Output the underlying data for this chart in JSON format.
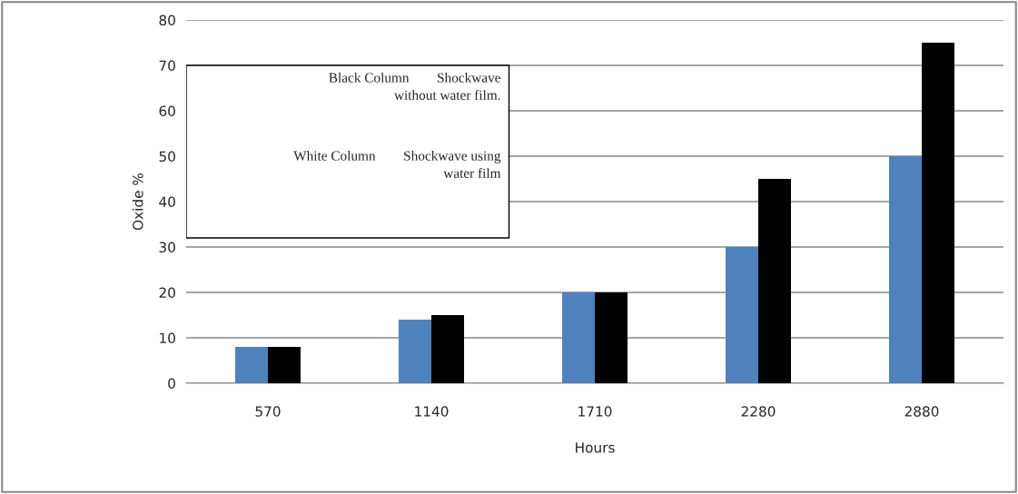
{
  "chart_data": {
    "type": "bar",
    "xlabel": "Hours",
    "ylabel": "Oxide %",
    "categories": [
      "570",
      "1140",
      "1710",
      "2280",
      "2880"
    ],
    "series": [
      {
        "color": "#4f81bd",
        "values": [
          8,
          14,
          20,
          30,
          50
        ]
      },
      {
        "color": "#000000",
        "values": [
          8,
          15,
          20,
          45,
          75
        ]
      }
    ],
    "ylim": [
      0,
      80
    ],
    "yticks": [
      0,
      10,
      20,
      30,
      40,
      50,
      60,
      70,
      80
    ],
    "grid": "y",
    "annotations": [
      "Black Column        Shockwave\nwithout water film.",
      "White Column        Shockwave using\nwater film"
    ]
  }
}
